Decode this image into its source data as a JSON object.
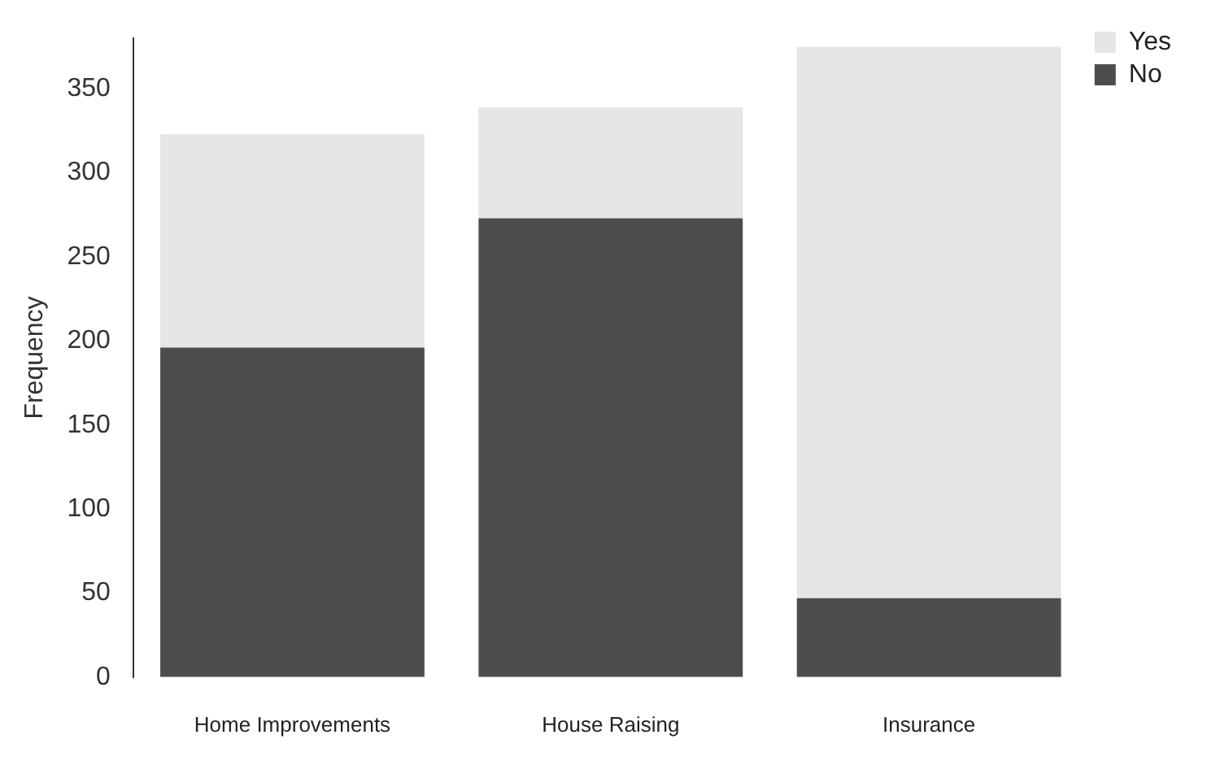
{
  "chart_data": {
    "type": "bar",
    "ylabel": "Frequency",
    "categories": [
      "Home Improvements",
      "House Raising",
      "Insurance"
    ],
    "stacked": true,
    "ylim": [
      0,
      380
    ],
    "yticks": [
      0,
      50,
      100,
      150,
      200,
      250,
      300,
      350
    ],
    "grid": false,
    "legend": "top right",
    "series": [
      {
        "name": "No",
        "color": "#4d4d4d",
        "values": [
          196,
          273,
          47
        ]
      },
      {
        "name": "Yes",
        "color": "#e6e6e6",
        "values": [
          127,
          66,
          328
        ]
      }
    ]
  }
}
